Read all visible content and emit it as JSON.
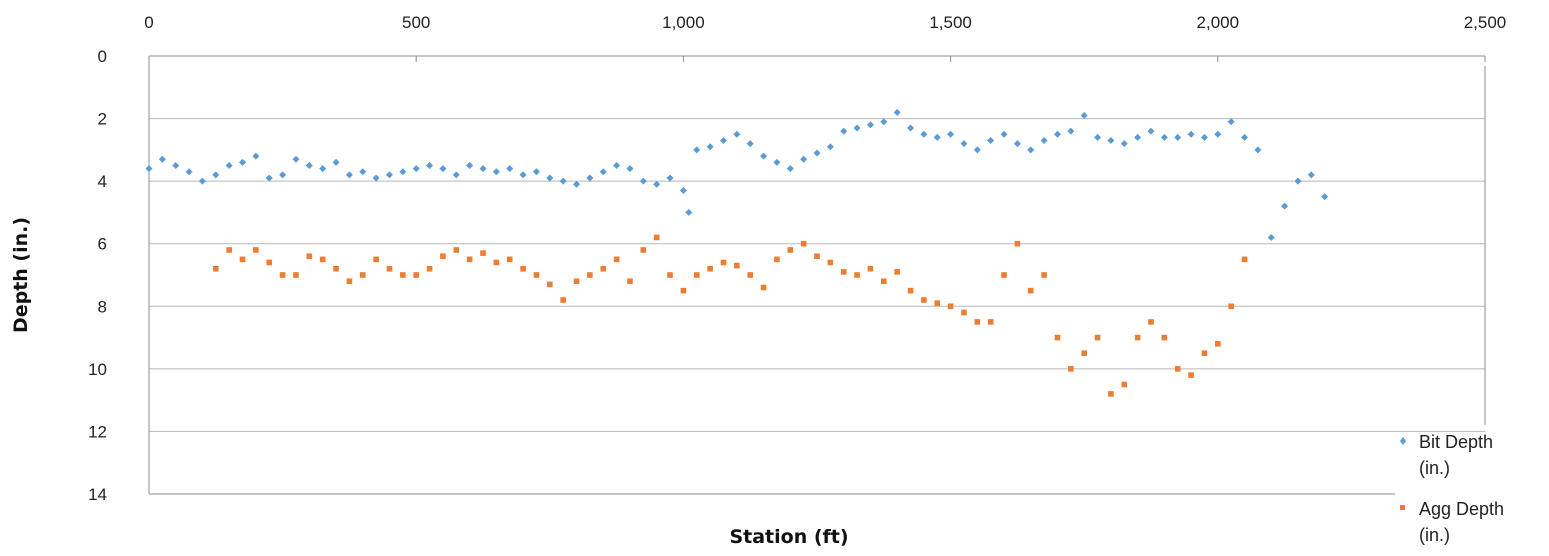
{
  "chart_data": {
    "type": "scatter",
    "title": "",
    "xlabel": "Station (ft)",
    "ylabel": "Depth (in.)",
    "xlim": [
      0,
      2500
    ],
    "ylim": [
      0,
      14
    ],
    "y_inverted": true,
    "x_axis_position": "top",
    "x_ticks": [
      "0",
      "500",
      "1,000",
      "1,500",
      "2,000",
      "2,500"
    ],
    "y_ticks": [
      "0",
      "2",
      "4",
      "6",
      "8",
      "10",
      "12",
      "14"
    ],
    "grid": "horizontal",
    "legend_position": "bottom-right",
    "series": [
      {
        "name_lines": [
          "Bit Depth",
          "(in.)"
        ],
        "marker": "diamond",
        "color": "#5b9bd5",
        "x": [
          0,
          25,
          50,
          75,
          100,
          125,
          150,
          175,
          200,
          225,
          250,
          275,
          300,
          325,
          350,
          375,
          400,
          425,
          450,
          475,
          500,
          525,
          550,
          575,
          600,
          625,
          650,
          675,
          700,
          725,
          750,
          775,
          800,
          825,
          850,
          875,
          900,
          925,
          950,
          975,
          1000,
          1010,
          1025,
          1050,
          1075,
          1100,
          1125,
          1150,
          1175,
          1200,
          1225,
          1250,
          1275,
          1300,
          1325,
          1350,
          1375,
          1400,
          1425,
          1450,
          1475,
          1500,
          1525,
          1550,
          1575,
          1600,
          1625,
          1650,
          1675,
          1700,
          1725,
          1750,
          1775,
          1800,
          1825,
          1850,
          1875,
          1900,
          1925,
          1950,
          1975,
          2000,
          2025,
          2050,
          2075,
          2100,
          2125,
          2150,
          2175,
          2200
        ],
        "y": [
          3.6,
          3.3,
          3.5,
          3.7,
          4.0,
          3.8,
          3.5,
          3.4,
          3.2,
          3.9,
          3.8,
          3.3,
          3.5,
          3.6,
          3.4,
          3.8,
          3.7,
          3.9,
          3.8,
          3.7,
          3.6,
          3.5,
          3.6,
          3.8,
          3.5,
          3.6,
          3.7,
          3.6,
          3.8,
          3.7,
          3.9,
          4.0,
          4.1,
          3.9,
          3.7,
          3.5,
          3.6,
          4.0,
          4.1,
          3.9,
          4.3,
          5.0,
          3.0,
          2.9,
          2.7,
          2.5,
          2.8,
          3.2,
          3.4,
          3.6,
          3.3,
          3.1,
          2.9,
          2.4,
          2.3,
          2.2,
          2.1,
          1.8,
          2.3,
          2.5,
          2.6,
          2.5,
          2.8,
          3.0,
          2.7,
          2.5,
          2.8,
          3.0,
          2.7,
          2.5,
          2.4,
          1.9,
          2.6,
          2.7,
          2.8,
          2.6,
          2.4,
          2.6,
          2.6,
          2.5,
          2.6,
          2.5,
          2.1,
          2.6,
          3.0,
          5.8,
          4.8,
          4.0,
          3.8,
          4.5
        ]
      },
      {
        "name_lines": [
          "Agg Depth",
          "(in.)"
        ],
        "marker": "square",
        "color": "#ed7d31",
        "x": [
          125,
          150,
          175,
          200,
          225,
          250,
          275,
          300,
          325,
          350,
          375,
          400,
          425,
          450,
          475,
          500,
          525,
          550,
          575,
          600,
          625,
          650,
          675,
          700,
          725,
          750,
          775,
          800,
          825,
          850,
          875,
          900,
          925,
          950,
          975,
          1000,
          1025,
          1050,
          1075,
          1100,
          1125,
          1150,
          1175,
          1200,
          1225,
          1250,
          1275,
          1300,
          1325,
          1350,
          1375,
          1400,
          1425,
          1450,
          1475,
          1500,
          1525,
          1550,
          1575,
          1600,
          1625,
          1650,
          1675,
          1700,
          1725,
          1750,
          1775,
          1800,
          1825,
          1850,
          1875,
          1900,
          1925,
          1950,
          1975,
          2000,
          2025,
          2050
        ],
        "y": [
          6.8,
          6.2,
          6.5,
          6.2,
          6.6,
          7.0,
          7.0,
          6.4,
          6.5,
          6.8,
          7.2,
          7.0,
          6.5,
          6.8,
          7.0,
          7.0,
          6.8,
          6.4,
          6.2,
          6.5,
          6.3,
          6.6,
          6.5,
          6.8,
          7.0,
          7.3,
          7.8,
          7.2,
          7.0,
          6.8,
          6.5,
          7.2,
          6.2,
          5.8,
          7.0,
          7.5,
          7.0,
          6.8,
          6.6,
          6.7,
          7.0,
          7.4,
          6.5,
          6.2,
          6.0,
          6.4,
          6.6,
          6.9,
          7.0,
          6.8,
          7.2,
          6.9,
          7.5,
          7.8,
          7.9,
          8.0,
          8.2,
          8.5,
          8.5,
          7.0,
          6.0,
          7.5,
          7.0,
          9.0,
          10.0,
          9.5,
          9.0,
          10.8,
          10.5,
          9.0,
          8.5,
          9.0,
          10.0,
          10.2,
          9.5,
          9.2,
          8.0,
          6.5
        ]
      }
    ]
  }
}
